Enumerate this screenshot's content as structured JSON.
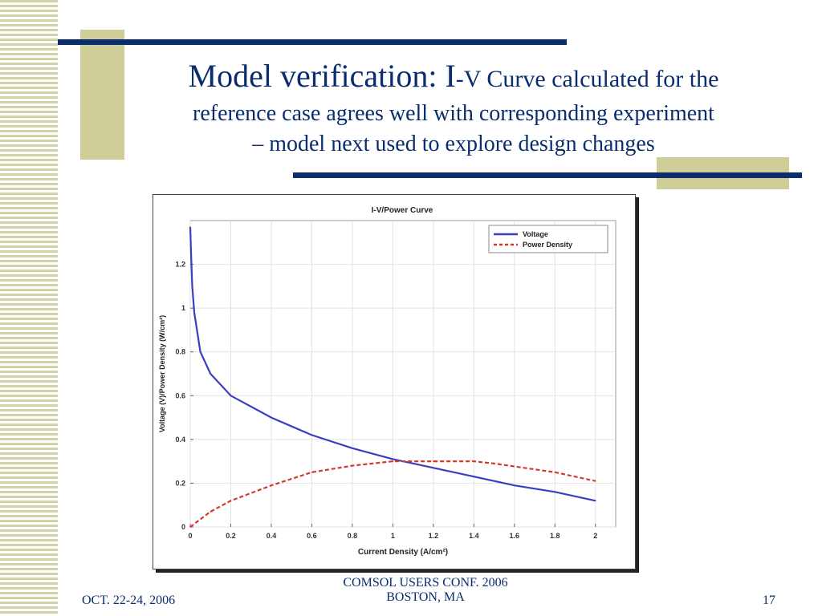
{
  "slide": {
    "title_main": "Model verification: I",
    "title_dash_v": "-V",
    "title_rest_line1": " Curve calculated for the",
    "title_line2": "reference case agrees well with corresponding experiment",
    "title_line3": "– model next used to explore design changes",
    "footer_left": "OCT. 22-24, 2006",
    "footer_center_line1": "COMSOL USERS CONF. 2006",
    "footer_center_line2": "BOSTON, MA",
    "page_number": "17"
  },
  "colors": {
    "navy": "#0a2d6e",
    "olive": "#cfcd98",
    "voltage": "#3a3fc2",
    "power": "#d43a2a"
  },
  "chart_data": {
    "type": "line",
    "title": "I-V/Power Curve",
    "xlabel": "Current Density (A/cm²)",
    "ylabel": "Voltage (V)/Power Density (W/cm²)",
    "xlim": [
      0,
      2.1
    ],
    "ylim": [
      0,
      1.4
    ],
    "x_ticks": [
      "0",
      "0.2",
      "0.4",
      "0.6",
      "0.8",
      "1",
      "1.2",
      "1.4",
      "1.6",
      "1.8",
      "2"
    ],
    "y_ticks": [
      "0",
      "0.2",
      "0.4",
      "0.6",
      "0.8",
      "1",
      "1.2"
    ],
    "legend_position": "top-right",
    "series": [
      {
        "name": "Voltage",
        "style": "solid",
        "x": [
          0.0,
          0.005,
          0.01,
          0.02,
          0.05,
          0.1,
          0.2,
          0.4,
          0.6,
          0.8,
          1.0,
          1.2,
          1.4,
          1.6,
          1.8,
          2.0
        ],
        "y": [
          1.37,
          1.22,
          1.1,
          0.98,
          0.8,
          0.7,
          0.6,
          0.5,
          0.42,
          0.36,
          0.31,
          0.27,
          0.23,
          0.19,
          0.16,
          0.12
        ]
      },
      {
        "name": "Power Density",
        "style": "dashed",
        "x": [
          0.0,
          0.1,
          0.2,
          0.4,
          0.6,
          0.8,
          1.0,
          1.2,
          1.4,
          1.5,
          1.8,
          2.0
        ],
        "y": [
          0.0,
          0.07,
          0.12,
          0.19,
          0.25,
          0.28,
          0.3,
          0.3,
          0.3,
          0.29,
          0.25,
          0.21
        ]
      }
    ]
  }
}
